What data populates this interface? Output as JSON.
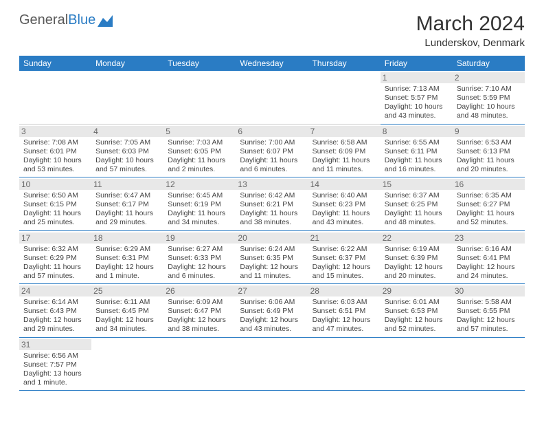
{
  "brand": {
    "part1": "General",
    "part2": "Blue"
  },
  "title": "March 2024",
  "location": "Lunderskov, Denmark",
  "weekdays": [
    "Sunday",
    "Monday",
    "Tuesday",
    "Wednesday",
    "Thursday",
    "Friday",
    "Saturday"
  ],
  "colors": {
    "header_bg": "#2a7cc4",
    "header_text": "#ffffff",
    "text": "#444444",
    "daynum_bg": "#e8e8e8",
    "border": "#2a7cc4",
    "background": "#ffffff"
  },
  "typography": {
    "title_fontsize": 30,
    "location_fontsize": 15,
    "weekday_fontsize": 12,
    "cell_fontsize": 10.5
  },
  "startOffset": 5,
  "days": [
    {
      "n": "1",
      "sunrise": "Sunrise: 7:13 AM",
      "sunset": "Sunset: 5:57 PM",
      "daylight": "Daylight: 10 hours and 43 minutes."
    },
    {
      "n": "2",
      "sunrise": "Sunrise: 7:10 AM",
      "sunset": "Sunset: 5:59 PM",
      "daylight": "Daylight: 10 hours and 48 minutes."
    },
    {
      "n": "3",
      "sunrise": "Sunrise: 7:08 AM",
      "sunset": "Sunset: 6:01 PM",
      "daylight": "Daylight: 10 hours and 53 minutes."
    },
    {
      "n": "4",
      "sunrise": "Sunrise: 7:05 AM",
      "sunset": "Sunset: 6:03 PM",
      "daylight": "Daylight: 10 hours and 57 minutes."
    },
    {
      "n": "5",
      "sunrise": "Sunrise: 7:03 AM",
      "sunset": "Sunset: 6:05 PM",
      "daylight": "Daylight: 11 hours and 2 minutes."
    },
    {
      "n": "6",
      "sunrise": "Sunrise: 7:00 AM",
      "sunset": "Sunset: 6:07 PM",
      "daylight": "Daylight: 11 hours and 6 minutes."
    },
    {
      "n": "7",
      "sunrise": "Sunrise: 6:58 AM",
      "sunset": "Sunset: 6:09 PM",
      "daylight": "Daylight: 11 hours and 11 minutes."
    },
    {
      "n": "8",
      "sunrise": "Sunrise: 6:55 AM",
      "sunset": "Sunset: 6:11 PM",
      "daylight": "Daylight: 11 hours and 16 minutes."
    },
    {
      "n": "9",
      "sunrise": "Sunrise: 6:53 AM",
      "sunset": "Sunset: 6:13 PM",
      "daylight": "Daylight: 11 hours and 20 minutes."
    },
    {
      "n": "10",
      "sunrise": "Sunrise: 6:50 AM",
      "sunset": "Sunset: 6:15 PM",
      "daylight": "Daylight: 11 hours and 25 minutes."
    },
    {
      "n": "11",
      "sunrise": "Sunrise: 6:47 AM",
      "sunset": "Sunset: 6:17 PM",
      "daylight": "Daylight: 11 hours and 29 minutes."
    },
    {
      "n": "12",
      "sunrise": "Sunrise: 6:45 AM",
      "sunset": "Sunset: 6:19 PM",
      "daylight": "Daylight: 11 hours and 34 minutes."
    },
    {
      "n": "13",
      "sunrise": "Sunrise: 6:42 AM",
      "sunset": "Sunset: 6:21 PM",
      "daylight": "Daylight: 11 hours and 38 minutes."
    },
    {
      "n": "14",
      "sunrise": "Sunrise: 6:40 AM",
      "sunset": "Sunset: 6:23 PM",
      "daylight": "Daylight: 11 hours and 43 minutes."
    },
    {
      "n": "15",
      "sunrise": "Sunrise: 6:37 AM",
      "sunset": "Sunset: 6:25 PM",
      "daylight": "Daylight: 11 hours and 48 minutes."
    },
    {
      "n": "16",
      "sunrise": "Sunrise: 6:35 AM",
      "sunset": "Sunset: 6:27 PM",
      "daylight": "Daylight: 11 hours and 52 minutes."
    },
    {
      "n": "17",
      "sunrise": "Sunrise: 6:32 AM",
      "sunset": "Sunset: 6:29 PM",
      "daylight": "Daylight: 11 hours and 57 minutes."
    },
    {
      "n": "18",
      "sunrise": "Sunrise: 6:29 AM",
      "sunset": "Sunset: 6:31 PM",
      "daylight": "Daylight: 12 hours and 1 minute."
    },
    {
      "n": "19",
      "sunrise": "Sunrise: 6:27 AM",
      "sunset": "Sunset: 6:33 PM",
      "daylight": "Daylight: 12 hours and 6 minutes."
    },
    {
      "n": "20",
      "sunrise": "Sunrise: 6:24 AM",
      "sunset": "Sunset: 6:35 PM",
      "daylight": "Daylight: 12 hours and 11 minutes."
    },
    {
      "n": "21",
      "sunrise": "Sunrise: 6:22 AM",
      "sunset": "Sunset: 6:37 PM",
      "daylight": "Daylight: 12 hours and 15 minutes."
    },
    {
      "n": "22",
      "sunrise": "Sunrise: 6:19 AM",
      "sunset": "Sunset: 6:39 PM",
      "daylight": "Daylight: 12 hours and 20 minutes."
    },
    {
      "n": "23",
      "sunrise": "Sunrise: 6:16 AM",
      "sunset": "Sunset: 6:41 PM",
      "daylight": "Daylight: 12 hours and 24 minutes."
    },
    {
      "n": "24",
      "sunrise": "Sunrise: 6:14 AM",
      "sunset": "Sunset: 6:43 PM",
      "daylight": "Daylight: 12 hours and 29 minutes."
    },
    {
      "n": "25",
      "sunrise": "Sunrise: 6:11 AM",
      "sunset": "Sunset: 6:45 PM",
      "daylight": "Daylight: 12 hours and 34 minutes."
    },
    {
      "n": "26",
      "sunrise": "Sunrise: 6:09 AM",
      "sunset": "Sunset: 6:47 PM",
      "daylight": "Daylight: 12 hours and 38 minutes."
    },
    {
      "n": "27",
      "sunrise": "Sunrise: 6:06 AM",
      "sunset": "Sunset: 6:49 PM",
      "daylight": "Daylight: 12 hours and 43 minutes."
    },
    {
      "n": "28",
      "sunrise": "Sunrise: 6:03 AM",
      "sunset": "Sunset: 6:51 PM",
      "daylight": "Daylight: 12 hours and 47 minutes."
    },
    {
      "n": "29",
      "sunrise": "Sunrise: 6:01 AM",
      "sunset": "Sunset: 6:53 PM",
      "daylight": "Daylight: 12 hours and 52 minutes."
    },
    {
      "n": "30",
      "sunrise": "Sunrise: 5:58 AM",
      "sunset": "Sunset: 6:55 PM",
      "daylight": "Daylight: 12 hours and 57 minutes."
    },
    {
      "n": "31",
      "sunrise": "Sunrise: 6:56 AM",
      "sunset": "Sunset: 7:57 PM",
      "daylight": "Daylight: 13 hours and 1 minute."
    }
  ]
}
